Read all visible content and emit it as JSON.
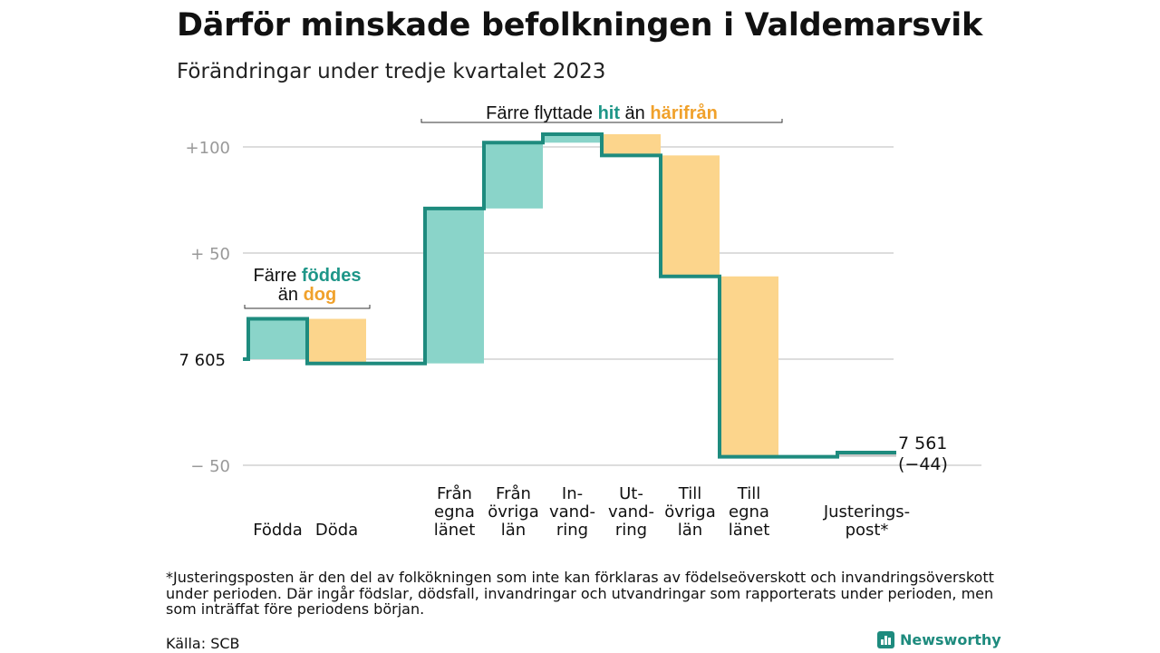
{
  "title": "Därför minskade befolkningen i Valdemarsvik",
  "subtitle": "Förändringar under tredje kvartalet 2023",
  "annotations": {
    "births": {
      "prefix": "Färre",
      "hi1": "föddes",
      "line2": "än",
      "hi2": "dog"
    },
    "migration": {
      "prefix": "Färre flyttade",
      "hi1": "hit",
      "mid": "än",
      "hi2": "härifrån"
    }
  },
  "colors": {
    "in_fill": "#8ad4c9",
    "out_fill": "#fcd58c",
    "line": "#1e8b7e",
    "in_text": "#1e9688",
    "out_text": "#f0a12b",
    "grid": "#dddddd",
    "adjust_fill": "#c6c6c6"
  },
  "chart_data": {
    "type": "waterfall",
    "start_label": "7  605",
    "end_label": "7 561",
    "end_change": "(−44)",
    "y_ticks": [
      "+100",
      "+  50",
      "−  50"
    ],
    "steps": [
      {
        "label": [
          "Födda"
        ],
        "value": 19,
        "kind": "in"
      },
      {
        "label": [
          "Döda"
        ],
        "value": -21,
        "kind": "out"
      },
      {
        "label": [
          "Från",
          "egna",
          "länet"
        ],
        "value": 73,
        "kind": "in"
      },
      {
        "label": [
          "Från",
          "övriga",
          "län"
        ],
        "value": 31,
        "kind": "in"
      },
      {
        "label": [
          "In-",
          "vand-",
          "ring"
        ],
        "value": 4,
        "kind": "in"
      },
      {
        "label": [
          "Ut-",
          "vand-",
          "ring"
        ],
        "value": -10,
        "kind": "out"
      },
      {
        "label": [
          "Till",
          "övriga",
          "län"
        ],
        "value": -57,
        "kind": "out"
      },
      {
        "label": [
          "Till",
          "egna",
          "länet"
        ],
        "value": -85,
        "kind": "out"
      },
      {
        "label": [
          "Justerings-",
          "post*"
        ],
        "value": 2,
        "kind": "adjust"
      }
    ],
    "ylim": [
      -55,
      110
    ],
    "grid": true
  },
  "footnote": "*Justeringsposten är den del av folkökningen som inte kan förklaras av födelseöverskott och invandringsöverskott under perioden. Där ingår födslar, dödsfall, invandringar och utvandringar som rapporterats under perioden, men som inträffat före periodens början.",
  "source": "Källa: SCB",
  "brand": "Newsworthy"
}
